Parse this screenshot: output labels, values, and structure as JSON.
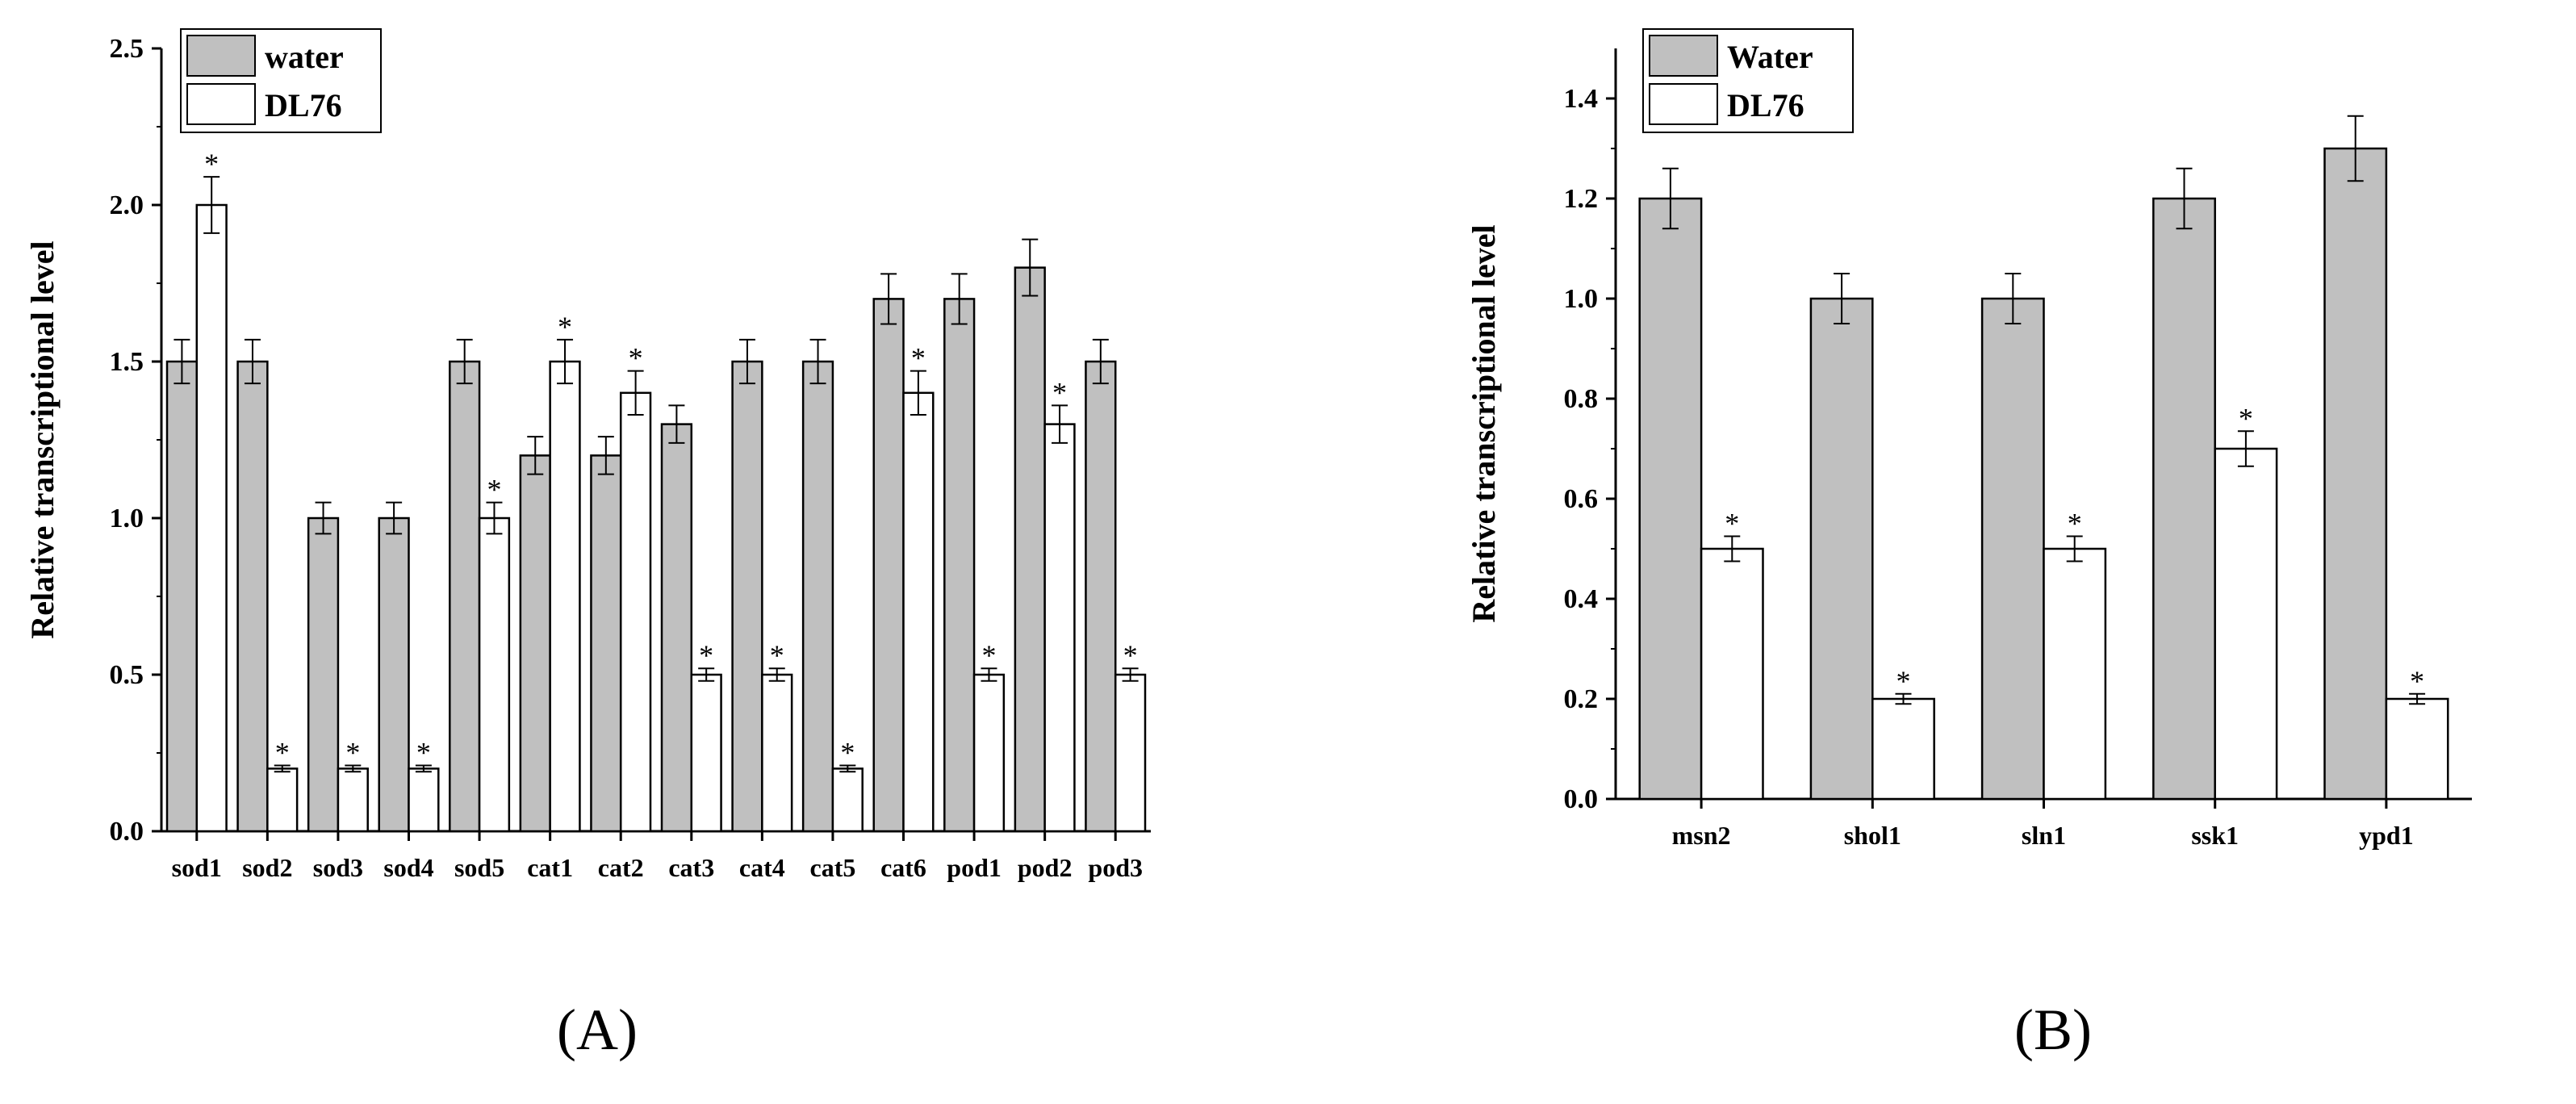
{
  "colors": {
    "water": "#c0c0c0",
    "dl76": "#ffffff",
    "stroke": "#000000"
  },
  "chart_data": [
    {
      "id": "A",
      "type": "bar",
      "panel_label": "(A)",
      "ylabel": "Relative transcriptional level",
      "ylim": [
        0,
        2.5
      ],
      "yticks": [
        "0.0",
        "0.5",
        "1.0",
        "1.5",
        "2.0",
        "2.5"
      ],
      "legend_position": "top-left",
      "categories": [
        "sod1",
        "sod2",
        "sod3",
        "sod4",
        "sod5",
        "cat1",
        "cat2",
        "cat3",
        "cat4",
        "cat5",
        "cat6",
        "pod1",
        "pod2",
        "pod3"
      ],
      "series": [
        {
          "name": "water",
          "values": [
            1.5,
            1.5,
            1.0,
            1.0,
            1.5,
            1.2,
            1.2,
            1.3,
            1.5,
            1.5,
            1.7,
            1.7,
            1.8,
            1.5
          ],
          "errors": [
            0.07,
            0.07,
            0.05,
            0.05,
            0.07,
            0.06,
            0.06,
            0.06,
            0.07,
            0.07,
            0.08,
            0.08,
            0.09,
            0.07
          ]
        },
        {
          "name": "DL76",
          "values": [
            2.0,
            0.2,
            0.2,
            0.2,
            1.0,
            1.5,
            1.4,
            0.5,
            0.5,
            0.2,
            1.4,
            0.5,
            1.3,
            0.5
          ],
          "errors": [
            0.09,
            0.01,
            0.01,
            0.01,
            0.05,
            0.07,
            0.07,
            0.02,
            0.02,
            0.01,
            0.07,
            0.02,
            0.06,
            0.02
          ],
          "significant": [
            true,
            true,
            true,
            true,
            true,
            true,
            true,
            true,
            true,
            true,
            true,
            true,
            true,
            true
          ]
        }
      ],
      "significance_marker": "*"
    },
    {
      "id": "B",
      "type": "bar",
      "panel_label": "(B)",
      "ylabel": "Relative transcriptional level",
      "ylim": [
        0,
        1.5
      ],
      "yticks": [
        "0.0",
        "0.2",
        "0.4",
        "0.6",
        "0.8",
        "1.0",
        "1.2",
        "1.4"
      ],
      "legend_position": "top-left",
      "categories": [
        "msn2",
        "shol1",
        "sln1",
        "ssk1",
        "ypd1"
      ],
      "series": [
        {
          "name": "Water",
          "values": [
            1.2,
            1.0,
            1.0,
            1.2,
            1.3
          ],
          "errors": [
            0.06,
            0.05,
            0.05,
            0.06,
            0.065
          ]
        },
        {
          "name": "DL76",
          "values": [
            0.5,
            0.2,
            0.5,
            0.7,
            0.2
          ],
          "errors": [
            0.025,
            0.01,
            0.025,
            0.035,
            0.01
          ],
          "significant": [
            true,
            true,
            true,
            true,
            true
          ]
        }
      ],
      "significance_marker": "*"
    }
  ]
}
